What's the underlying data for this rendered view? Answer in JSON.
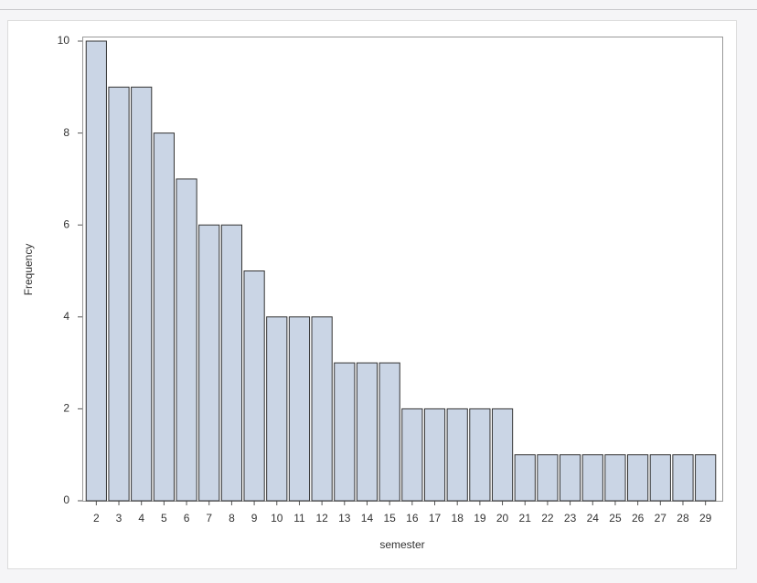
{
  "chart_data": {
    "type": "bar",
    "x_label": "semester",
    "y_label": "Frequency",
    "categories": [
      "2",
      "3",
      "4",
      "5",
      "6",
      "7",
      "8",
      "9",
      "10",
      "11",
      "12",
      "13",
      "14",
      "15",
      "16",
      "17",
      "18",
      "19",
      "20",
      "21",
      "22",
      "23",
      "24",
      "25",
      "26",
      "27",
      "28",
      "29"
    ],
    "values": [
      10,
      9,
      9,
      8,
      7,
      6,
      6,
      5,
      4,
      4,
      4,
      3,
      3,
      3,
      2,
      2,
      2,
      2,
      2,
      1,
      1,
      1,
      1,
      1,
      1,
      1,
      1,
      1
    ],
    "color": "#cad5e5",
    "ylim": [
      0,
      10
    ],
    "yticks": [
      0,
      2,
      4,
      6,
      8,
      10
    ],
    "grid": false
  }
}
